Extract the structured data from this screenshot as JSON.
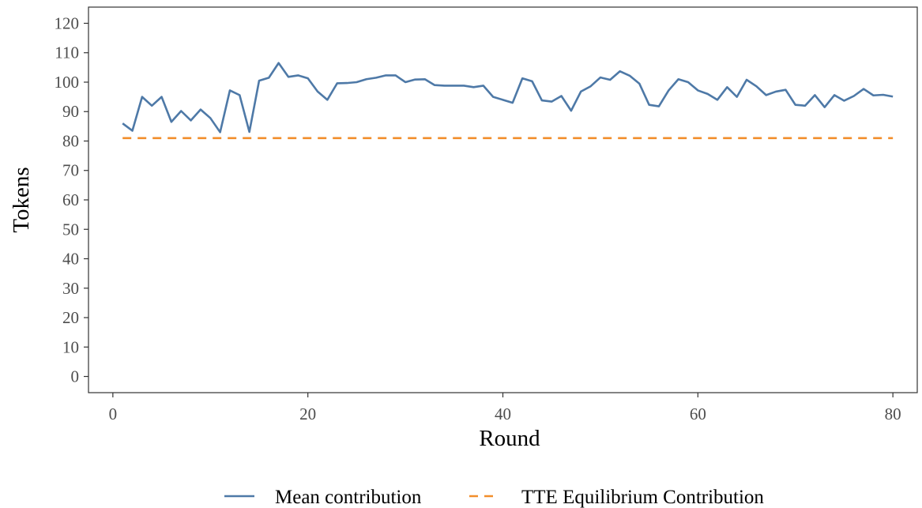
{
  "chart_data": {
    "type": "line",
    "xlabel": "Round",
    "ylabel": "Tokens",
    "xlim": [
      -2.5,
      82.5
    ],
    "ylim": [
      -5.5,
      125.5
    ],
    "xticks": [
      0,
      20,
      40,
      60,
      80
    ],
    "yticks": [
      0,
      10,
      20,
      30,
      40,
      50,
      60,
      70,
      80,
      90,
      100,
      110,
      120
    ],
    "grid": false,
    "legend_position": "bottom",
    "series": [
      {
        "name": "Mean contribution",
        "style": "solid",
        "color": "#4e79a7",
        "x": [
          1,
          2,
          3,
          4,
          5,
          6,
          7,
          8,
          9,
          10,
          11,
          12,
          13,
          14,
          15,
          16,
          17,
          18,
          19,
          20,
          21,
          22,
          23,
          24,
          25,
          26,
          27,
          28,
          29,
          30,
          31,
          32,
          33,
          34,
          35,
          36,
          37,
          38,
          39,
          40,
          41,
          42,
          43,
          44,
          45,
          46,
          47,
          48,
          49,
          50,
          51,
          52,
          53,
          54,
          55,
          56,
          57,
          58,
          59,
          60,
          61,
          62,
          63,
          64,
          65,
          66,
          67,
          68,
          69,
          70,
          71,
          72,
          73,
          74,
          75,
          76,
          77,
          78,
          79,
          80
        ],
        "y": [
          86,
          83.5,
          95,
          92,
          95,
          86.5,
          90.2,
          87,
          90.7,
          87.8,
          83,
          97.2,
          95.6,
          83.1,
          100.5,
          101.5,
          106.5,
          101.8,
          102.3,
          101.3,
          96.8,
          94,
          99.6,
          99.7,
          100,
          101,
          101.5,
          102.3,
          102.3,
          100,
          100.9,
          101,
          99,
          98.8,
          98.8,
          98.8,
          98.3,
          98.8,
          95,
          94,
          93,
          101.3,
          100.3,
          93.8,
          93.4,
          95.3,
          90.3,
          96.8,
          98.6,
          101.6,
          100.8,
          103.7,
          102.2,
          99.5,
          92.3,
          91.8,
          97.2,
          101,
          100,
          97.2,
          96,
          94,
          98.3,
          95,
          100.8,
          98.6,
          95.6,
          96.8,
          97.4,
          92.3,
          92,
          95.6,
          91.5,
          95.6,
          93.7,
          95.3,
          97.7,
          95.5,
          95.7,
          95.1
        ]
      },
      {
        "name": "TTE Equilibrium Contribution",
        "style": "dashed",
        "color": "#f28e2b",
        "x": [
          1,
          80
        ],
        "y": [
          81,
          81
        ]
      }
    ]
  }
}
